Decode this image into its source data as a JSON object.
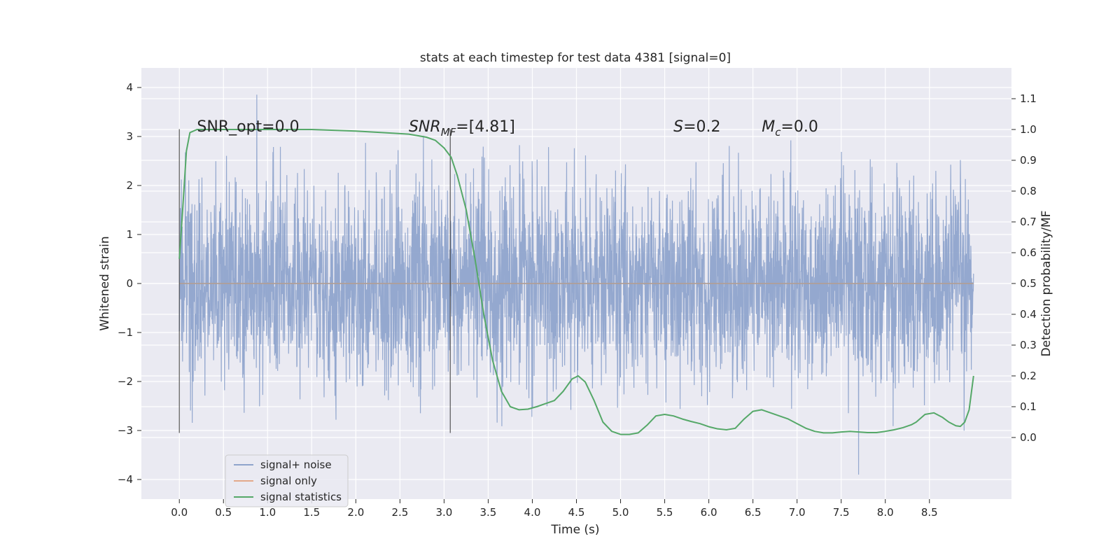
{
  "chart_data": {
    "type": "line",
    "title": "stats at each timestep for test data 4381 [signal=0]",
    "xlabel": "Time (s)",
    "ylabel_left": "Whitened strain",
    "ylabel_right": "Detection probability/MF",
    "xlim": [
      -0.43,
      9.43
    ],
    "ylim_left": [
      -4.4,
      4.4
    ],
    "ylim_right": [
      -0.2,
      1.2
    ],
    "x_ticks": [
      "0.0",
      "0.5",
      "1.0",
      "1.5",
      "2.0",
      "2.5",
      "3.0",
      "3.5",
      "4.0",
      "4.5",
      "5.0",
      "5.5",
      "6.0",
      "6.5",
      "7.0",
      "7.5",
      "8.0",
      "8.5"
    ],
    "x_tick_values": [
      0.0,
      0.5,
      1.0,
      1.5,
      2.0,
      2.5,
      3.0,
      3.5,
      4.0,
      4.5,
      5.0,
      5.5,
      6.0,
      6.5,
      7.0,
      7.5,
      8.0,
      8.5
    ],
    "y_ticks_left": [
      "−4",
      "−3",
      "−2",
      "−1",
      "0",
      "1",
      "2",
      "3",
      "4"
    ],
    "y_tick_values_left": [
      -4,
      -3,
      -2,
      -1,
      0,
      1,
      2,
      3,
      4
    ],
    "y_ticks_right": [
      "0.0",
      "0.1",
      "0.2",
      "0.3",
      "0.4",
      "0.5",
      "0.6",
      "0.7",
      "0.8",
      "0.9",
      "1.0",
      "1.1"
    ],
    "y_tick_values_right": [
      0.0,
      0.1,
      0.2,
      0.3,
      0.4,
      0.5,
      0.6,
      0.7,
      0.8,
      0.9,
      1.0,
      1.1
    ],
    "grid": true,
    "legend_position": "lower-left",
    "series": [
      {
        "name": "signal+ noise",
        "color": "#8fa4cc",
        "axis": "left",
        "x_range": [
          0.0,
          9.0
        ],
        "typical_amplitude": 1.0,
        "min": -3.9,
        "max": 4.0
      },
      {
        "name": "signal only",
        "color": "#e3a98a",
        "axis": "left",
        "x": [
          0.0,
          9.0
        ],
        "values": [
          0.0,
          0.0
        ]
      },
      {
        "name": "signal statistics",
        "color": "#55a868",
        "axis": "right",
        "x": [
          0.0,
          0.04,
          0.08,
          0.12,
          0.2,
          0.3,
          0.5,
          1.0,
          1.5,
          2.0,
          2.3,
          2.6,
          2.8,
          2.9,
          3.0,
          3.08,
          3.15,
          3.25,
          3.35,
          3.45,
          3.55,
          3.65,
          3.75,
          3.85,
          3.95,
          4.05,
          4.15,
          4.25,
          4.35,
          4.45,
          4.52,
          4.6,
          4.7,
          4.8,
          4.9,
          5.0,
          5.1,
          5.2,
          5.3,
          5.4,
          5.5,
          5.6,
          5.7,
          5.8,
          5.9,
          6.0,
          6.1,
          6.2,
          6.3,
          6.4,
          6.5,
          6.6,
          6.7,
          6.8,
          6.9,
          7.0,
          7.1,
          7.2,
          7.3,
          7.4,
          7.5,
          7.6,
          7.7,
          7.8,
          7.9,
          8.0,
          8.1,
          8.2,
          8.3,
          8.35,
          8.45,
          8.55,
          8.65,
          8.72,
          8.8,
          8.85,
          8.9,
          8.95,
          9.0
        ],
        "values": [
          0.58,
          0.75,
          0.93,
          0.99,
          1.0,
          1.0,
          1.0,
          1.0,
          1.0,
          0.995,
          0.99,
          0.985,
          0.975,
          0.965,
          0.94,
          0.91,
          0.85,
          0.74,
          0.58,
          0.4,
          0.25,
          0.15,
          0.1,
          0.09,
          0.092,
          0.1,
          0.11,
          0.12,
          0.15,
          0.19,
          0.2,
          0.18,
          0.12,
          0.05,
          0.02,
          0.01,
          0.01,
          0.015,
          0.04,
          0.07,
          0.075,
          0.07,
          0.06,
          0.052,
          0.045,
          0.035,
          0.028,
          0.025,
          0.03,
          0.06,
          0.085,
          0.09,
          0.08,
          0.07,
          0.06,
          0.045,
          0.03,
          0.02,
          0.015,
          0.015,
          0.018,
          0.02,
          0.018,
          0.016,
          0.016,
          0.02,
          0.025,
          0.032,
          0.042,
          0.05,
          0.075,
          0.08,
          0.065,
          0.05,
          0.038,
          0.036,
          0.05,
          0.09,
          0.2
        ]
      }
    ],
    "vertical_lines": [
      {
        "x": 0.0,
        "ymin": -3.05,
        "ymax": 3.15
      },
      {
        "x": 3.07,
        "ymin": -3.05,
        "ymax": 3.15
      }
    ],
    "annotations": [
      {
        "key": "snr_opt",
        "x": 0.2,
        "y": 3.1,
        "text": "SNR_opt=0.0"
      },
      {
        "key": "snr_mf",
        "x": 2.6,
        "y": 3.1,
        "prefix": "SNR",
        "subscript": "MF",
        "suffix": "=[4.81]",
        "italic": true
      },
      {
        "key": "s",
        "x": 5.6,
        "y": 3.1,
        "prefix": "S",
        "suffix": "=0.2",
        "italic": true
      },
      {
        "key": "mc",
        "x": 6.6,
        "y": 3.1,
        "prefix": "M",
        "subscript": "c",
        "suffix": "=0.0",
        "italic": true
      }
    ]
  }
}
